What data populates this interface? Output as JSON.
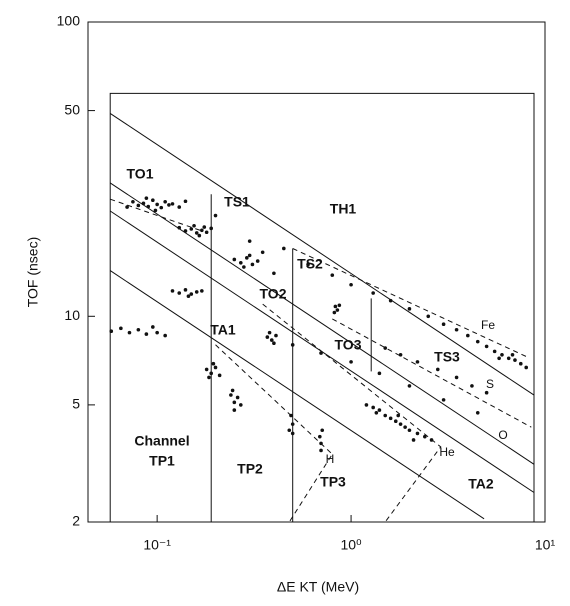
{
  "chart_data": {
    "type": "scatter",
    "x_label": "ΔE KT (MeV)",
    "y_label": "TOF (nsec)",
    "xlog": true,
    "ylog": true,
    "xlim": [
      0.044,
      10
    ],
    "ylim": [
      2,
      100
    ],
    "xticks": [
      {
        "value": 0.1,
        "label": "10⁻¹"
      },
      {
        "value": 1,
        "label": "10⁰"
      },
      {
        "value": 10,
        "label": "10¹"
      }
    ],
    "yticks": [
      2,
      5,
      10,
      50,
      100
    ],
    "color": "#111111",
    "x": [
      0.07,
      0.075,
      0.08,
      0.085,
      0.09,
      0.095,
      0.1,
      0.105,
      0.11,
      0.115,
      0.12,
      0.13,
      0.14,
      0.088,
      0.098,
      0.13,
      0.14,
      0.15,
      0.16,
      0.17,
      0.18,
      0.19,
      0.155,
      0.165,
      0.175,
      0.25,
      0.27,
      0.29,
      0.31,
      0.33,
      0.28,
      0.3,
      0.12,
      0.13,
      0.14,
      0.15,
      0.16,
      0.17,
      0.145,
      0.058,
      0.065,
      0.072,
      0.08,
      0.088,
      0.095,
      0.1,
      0.11,
      0.18,
      0.19,
      0.2,
      0.21,
      0.195,
      0.185,
      0.24,
      0.25,
      0.26,
      0.25,
      0.27,
      0.245,
      0.37,
      0.39,
      0.41,
      0.4,
      0.38,
      0.49,
      0.5,
      0.48,
      0.5,
      0.69,
      0.7,
      0.71,
      0.7,
      0.83,
      0.85,
      0.87,
      0.82,
      1.2,
      1.3,
      1.4,
      1.5,
      1.6,
      1.7,
      1.8,
      1.9,
      2.0,
      2.2,
      2.4,
      2.6,
      1.35,
      1.75,
      2.1,
      0.6,
      0.8,
      1.0,
      1.3,
      1.6,
      2.0,
      2.5,
      3,
      3.5,
      4,
      4.5,
      5,
      5.5,
      6,
      6.5,
      7,
      7.5,
      8,
      5.8,
      6.8,
      1.5,
      1.8,
      2.2,
      2.8,
      3.5,
      4.2,
      5,
      0.5,
      0.7,
      1.0,
      1.4,
      2,
      3,
      4.5,
      0.2,
      0.3,
      0.35,
      0.4,
      0.45
    ],
    "y": [
      23.5,
      24.5,
      23.8,
      24.2,
      23.6,
      24.8,
      24,
      23.4,
      24.5,
      23.9,
      24.1,
      23.5,
      24.6,
      25.2,
      22.9,
      20,
      19.5,
      19.8,
      19.2,
      19.6,
      19.3,
      19.9,
      20.3,
      18.8,
      20.1,
      15.6,
      15.2,
      15.8,
      15,
      15.4,
      14.7,
      16.1,
      12.2,
      12,
      12.3,
      11.9,
      12.1,
      12.2,
      11.7,
      8.9,
      9.1,
      8.8,
      9.0,
      8.7,
      9.2,
      8.8,
      8.6,
      6.6,
      6.4,
      6.7,
      6.3,
      6.9,
      6.2,
      5.4,
      5.1,
      5.3,
      4.8,
      5.0,
      5.6,
      8.5,
      8.3,
      8.6,
      8.1,
      8.8,
      4.6,
      4.3,
      4.1,
      4.0,
      3.9,
      3.7,
      4.1,
      3.5,
      10.8,
      10.5,
      10.9,
      10.3,
      5.0,
      4.9,
      4.8,
      4.6,
      4.5,
      4.4,
      4.3,
      4.2,
      4.1,
      4.0,
      3.9,
      3.8,
      4.7,
      4.6,
      3.8,
      15,
      13.8,
      12.8,
      12,
      11.3,
      10.6,
      10,
      9.4,
      9,
      8.6,
      8.2,
      7.9,
      7.6,
      7.4,
      7.2,
      7.1,
      6.9,
      6.7,
      7.2,
      7.4,
      7.8,
      7.4,
      7.0,
      6.6,
      6.2,
      5.8,
      5.5,
      8.0,
      7.5,
      7.0,
      6.4,
      5.8,
      5.2,
      4.7,
      22,
      18,
      16.5,
      14,
      17
    ],
    "lines": [
      {
        "x": [
          0.0573,
          0.0573,
          8.78,
          8.78
        ],
        "y": [
          2,
          57.2,
          57.2,
          2
        ],
        "dashed": false
      },
      {
        "x": [
          0.0573,
          8.78
        ],
        "y": [
          48.9,
          5.4
        ],
        "dashed": false
      },
      {
        "x": [
          0.0573,
          8.78
        ],
        "y": [
          28.4,
          3.14
        ],
        "dashed": false
      },
      {
        "x": [
          0.0573,
          8.78
        ],
        "y": [
          22.8,
          2.52
        ],
        "dashed": false
      },
      {
        "x": [
          0.0573,
          4.85
        ],
        "y": [
          14.3,
          2.05
        ],
        "dashed": false
      },
      {
        "x": [
          0.19,
          0.19
        ],
        "y": [
          26,
          2
        ],
        "dashed": false
      },
      {
        "x": [
          0.5,
          0.5
        ],
        "y": [
          17,
          2
        ],
        "dashed": false
      },
      {
        "x": [
          1.27,
          1.27
        ],
        "y": [
          11.5,
          6.5
        ],
        "dashed": false
      },
      {
        "x": [
          0.2,
          0.8,
          0.48
        ],
        "y": [
          8.0,
          3.4,
          2.0
        ],
        "dashed": true
      },
      {
        "x": [
          0.35,
          2.9,
          1.5
        ],
        "y": [
          11,
          3.6,
          2.0
        ],
        "dashed": true
      },
      {
        "x": [
          0.5,
          8
        ],
        "y": [
          17,
          7.3
        ],
        "dashed": true
      },
      {
        "x": [
          0.8,
          8.5
        ],
        "y": [
          9.8,
          4.2
        ],
        "dashed": true
      },
      {
        "x": [
          0.0573,
          0.17
        ],
        "y": [
          25,
          19.5
        ],
        "dashed": true
      }
    ],
    "annotations": [
      "TO1",
      "TS1",
      "TH1",
      "TS2",
      "TO2",
      "TO3",
      "TA1",
      "TS3",
      "Fe",
      "S",
      "O",
      "He",
      "H",
      "Channel",
      "TP1",
      "TP2",
      "TP3",
      "TA2"
    ]
  }
}
